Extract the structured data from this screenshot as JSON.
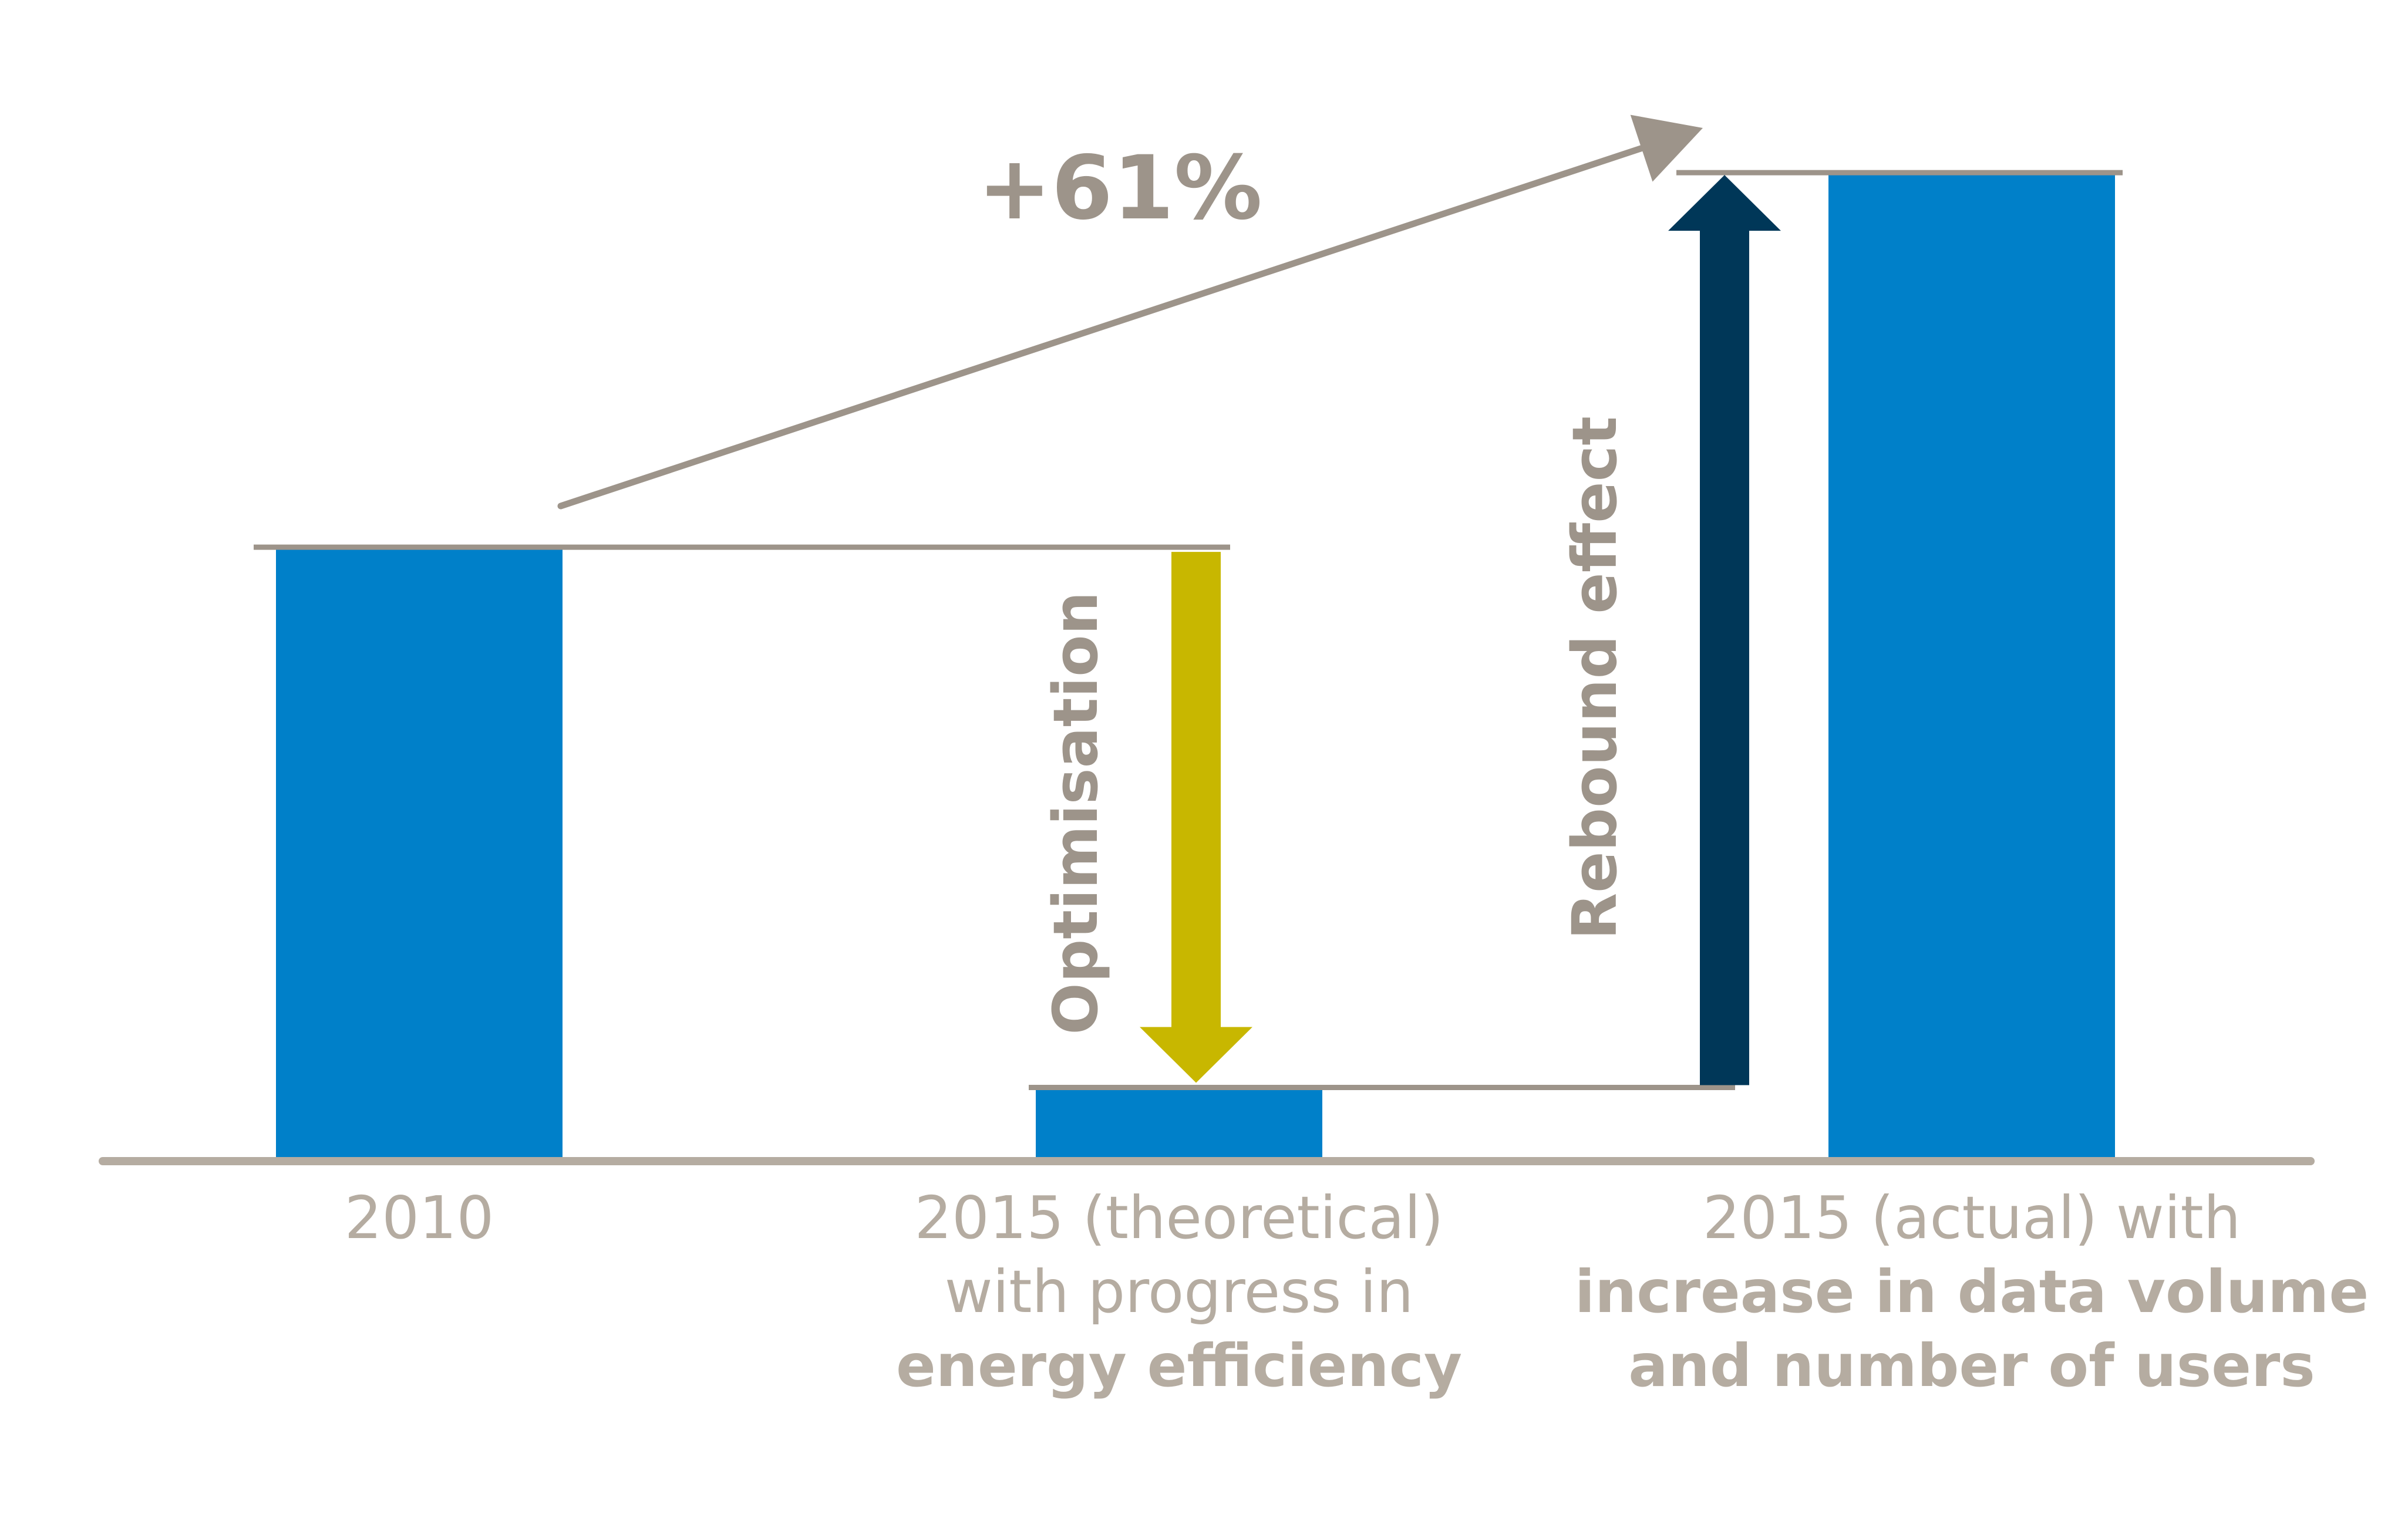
{
  "chart_data": {
    "type": "bar",
    "title": "",
    "xlabel": "",
    "ylabel": "",
    "categories": [
      "2010",
      "2015 (theoretical)",
      "2015 (actual)"
    ],
    "values": [
      100,
      12,
      161
    ],
    "ylim": [
      0,
      170
    ],
    "grid": false,
    "legend": "none",
    "category_labels": [
      {
        "lines": [
          {
            "text": "2010",
            "bold": false
          }
        ]
      },
      {
        "lines": [
          {
            "text": "2015 (theoretical)",
            "bold": false
          },
          {
            "text": "with progress in",
            "bold": false
          },
          {
            "text": "energy efficiency",
            "bold": true
          }
        ]
      },
      {
        "lines": [
          {
            "text": "2015 (actual) with",
            "bold": false
          },
          {
            "text": "increase in data volume",
            "bold": true
          },
          {
            "text": "and number of users",
            "bold": true
          }
        ]
      }
    ],
    "annotations": {
      "growth": "+61%",
      "optimisation": "Optimisation",
      "rebound": "Rebound effect"
    }
  },
  "colors": {
    "bar": "#0080c9",
    "gray": "#9d948a",
    "label": "#b5aca1",
    "optimisation_arrow": "#c8b700",
    "rebound_arrow": "#003758"
  }
}
